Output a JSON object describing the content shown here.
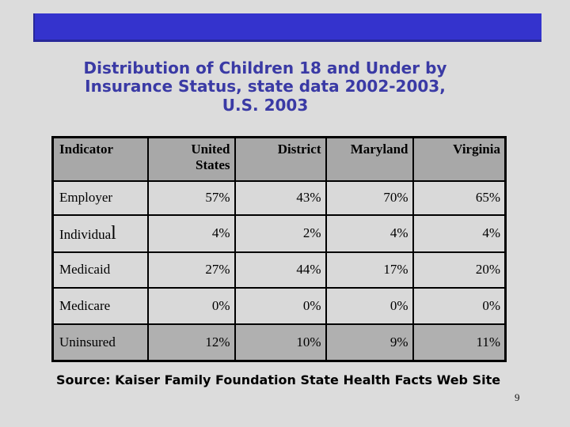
{
  "title": {
    "lines": [
      "Distribution of Children 18 and Under by",
      "Insurance Status, state data 2002-2003,",
      "U.S. 2003"
    ]
  },
  "table": {
    "columns": [
      "Indicator",
      "United States",
      "District",
      "Maryland",
      "Virginia"
    ],
    "rows": [
      {
        "indicator": "Employer",
        "values": [
          "57%",
          "43%",
          "70%",
          "65%"
        ]
      },
      {
        "indicator": "Individual",
        "values": [
          "4%",
          "2%",
          "4%",
          "4%"
        ]
      },
      {
        "indicator": "Medicaid",
        "values": [
          "27%",
          "44%",
          "17%",
          "20%"
        ]
      },
      {
        "indicator": "Medicare",
        "values": [
          "0%",
          "0%",
          "0%",
          "0%"
        ]
      },
      {
        "indicator": "Uninsured",
        "values": [
          "12%",
          "10%",
          "9%",
          "11%"
        ]
      }
    ],
    "quirks": {
      "individual_large_last_letter": true
    }
  },
  "source": "Source: Kaiser Family Foundation State Health Facts Web Site",
  "page_number": "9",
  "colors": {
    "header_bar_blue": "#3433cd",
    "header_bar_edge": "#28289a",
    "title_blue": "#3a3aa5",
    "slide_background": "#dcdcdc",
    "table_header_gray": "#a8a8a8",
    "table_body_gray": "#d9d9d9",
    "uninsured_row_gray": "#b0b0b0",
    "table_border": "#000000",
    "text_black": "#000000"
  }
}
